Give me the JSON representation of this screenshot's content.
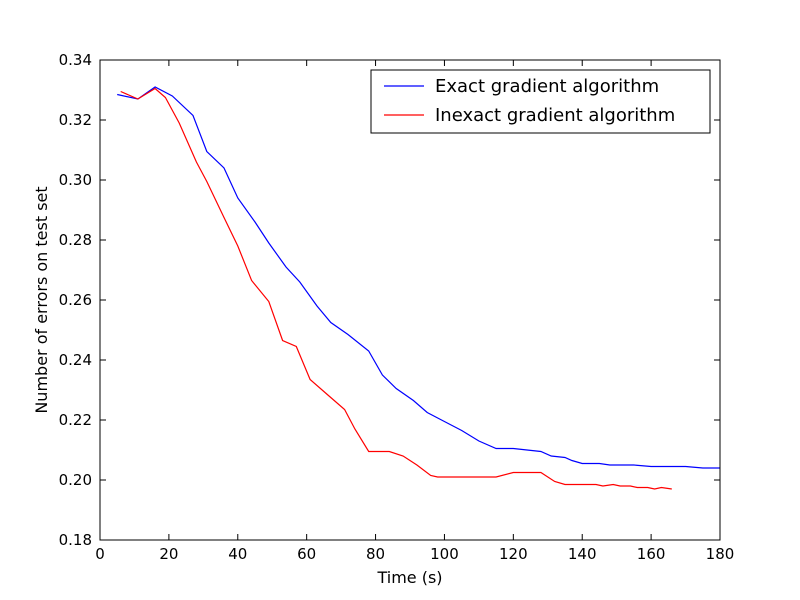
{
  "chart_data": {
    "type": "line",
    "title": "",
    "xlabel": "Time (s)",
    "ylabel": "Number of errors on test set",
    "xlim": [
      0,
      180
    ],
    "ylim": [
      0.18,
      0.34
    ],
    "xticks": [
      0,
      20,
      40,
      60,
      80,
      100,
      120,
      140,
      160,
      180
    ],
    "yticks": [
      0.18,
      0.2,
      0.22,
      0.24,
      0.26,
      0.28,
      0.3,
      0.32,
      0.34
    ],
    "xtick_labels": [
      "0",
      "20",
      "40",
      "60",
      "80",
      "100",
      "120",
      "140",
      "160",
      "180"
    ],
    "ytick_labels": [
      "0.18",
      "0.20",
      "0.22",
      "0.24",
      "0.26",
      "0.28",
      "0.30",
      "0.32",
      "0.34"
    ],
    "grid": false,
    "legend_position": "top-right",
    "series": [
      {
        "name": "Exact gradient algorithm",
        "color": "#0000ff",
        "x": [
          5,
          11,
          16,
          21,
          27,
          31,
          36,
          40,
          45,
          49,
          54,
          58,
          63,
          67,
          72,
          78,
          82,
          86,
          91,
          95,
          100,
          105,
          110,
          115,
          120,
          124,
          128,
          131,
          135,
          137,
          140,
          145,
          148,
          151,
          155,
          160,
          165,
          170,
          175,
          180
        ],
        "y": [
          0.3285,
          0.327,
          0.331,
          0.328,
          0.3215,
          0.3095,
          0.304,
          0.294,
          0.286,
          0.279,
          0.271,
          0.266,
          0.258,
          0.2525,
          0.2485,
          0.243,
          0.235,
          0.2305,
          0.2265,
          0.2225,
          0.2195,
          0.2165,
          0.213,
          0.2105,
          0.2105,
          0.21,
          0.2095,
          0.208,
          0.2075,
          0.2065,
          0.2055,
          0.2055,
          0.205,
          0.205,
          0.205,
          0.2045,
          0.2045,
          0.2045,
          0.204,
          0.204
        ]
      },
      {
        "name": "Inexact gradient algorithm",
        "color": "#ff0000",
        "x": [
          6,
          11,
          16,
          19,
          23,
          28,
          31,
          36,
          40,
          44,
          49,
          53,
          57,
          61,
          66,
          71,
          74,
          78,
          82,
          84,
          88,
          92,
          96,
          98,
          100,
          105,
          110,
          115,
          120,
          124,
          128,
          132,
          135,
          140,
          144,
          146,
          149,
          151,
          154,
          156,
          159,
          161,
          163,
          166
        ],
        "y": [
          0.3295,
          0.327,
          0.3305,
          0.3275,
          0.319,
          0.306,
          0.2995,
          0.2875,
          0.278,
          0.2665,
          0.2595,
          0.2465,
          0.2445,
          0.2335,
          0.2285,
          0.2235,
          0.217,
          0.2095,
          0.2095,
          0.2095,
          0.208,
          0.205,
          0.2015,
          0.201,
          0.201,
          0.201,
          0.201,
          0.201,
          0.2025,
          0.2025,
          0.2025,
          0.1995,
          0.1985,
          0.1985,
          0.1985,
          0.198,
          0.1985,
          0.198,
          0.198,
          0.1975,
          0.1975,
          0.197,
          0.1975,
          0.197
        ]
      }
    ]
  }
}
